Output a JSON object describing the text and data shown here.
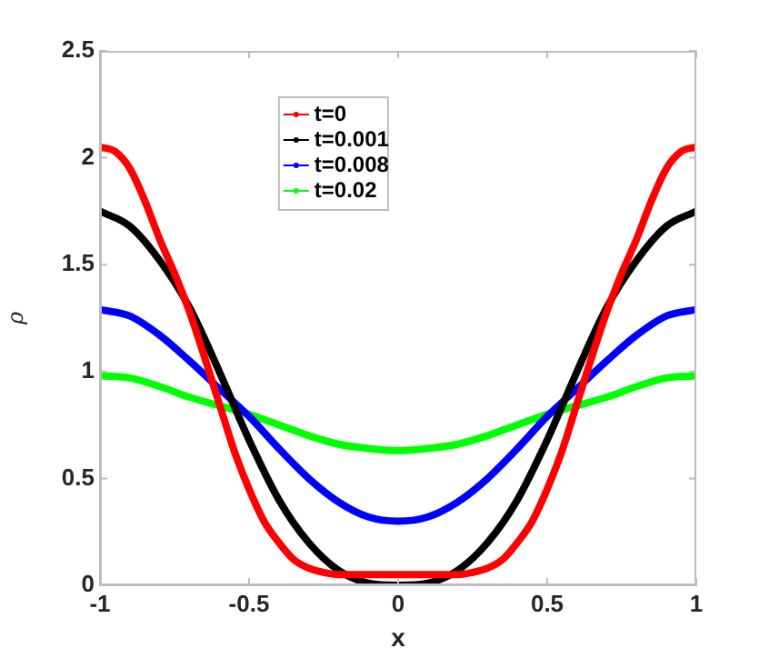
{
  "chart_data": {
    "type": "line",
    "xlabel": "x",
    "ylabel": "ρ",
    "xlim": [
      -1,
      1
    ],
    "ylim": [
      0,
      2.5
    ],
    "xticks": [
      -1,
      -0.5,
      0,
      0.5,
      1
    ],
    "yticks": [
      0,
      0.5,
      1,
      1.5,
      2,
      2.5
    ],
    "grid": false,
    "legend": "top",
    "marker": "none",
    "line_style": "solid",
    "series": [
      {
        "name": "t=0",
        "color": "#ff0000",
        "x": [
          -1,
          -0.95,
          -0.9,
          -0.85,
          -0.8,
          -0.75,
          -0.7,
          -0.65,
          -0.6,
          -0.55,
          -0.5,
          -0.45,
          -0.4,
          -0.35,
          -0.3,
          -0.25,
          -0.2,
          0,
          0.2,
          0.25,
          0.3,
          0.35,
          0.4,
          0.45,
          0.5,
          0.55,
          0.6,
          0.65,
          0.7,
          0.75,
          0.8,
          0.85,
          0.9,
          0.95,
          1
        ],
        "values": [
          2.05,
          2.03,
          1.95,
          1.8,
          1.62,
          1.46,
          1.28,
          1.07,
          0.85,
          0.63,
          0.45,
          0.3,
          0.2,
          0.12,
          0.08,
          0.06,
          0.05,
          0.05,
          0.05,
          0.06,
          0.08,
          0.12,
          0.2,
          0.3,
          0.45,
          0.63,
          0.85,
          1.07,
          1.28,
          1.46,
          1.62,
          1.8,
          1.95,
          2.03,
          2.05
        ]
      },
      {
        "name": "t=0.001",
        "color": "#000000",
        "x": [
          -1,
          -0.9,
          -0.8,
          -0.7,
          -0.6,
          -0.5,
          -0.4,
          -0.3,
          -0.2,
          -0.1,
          0,
          0.1,
          0.2,
          0.3,
          0.4,
          0.5,
          0.6,
          0.7,
          0.8,
          0.9,
          1
        ],
        "values": [
          1.75,
          1.68,
          1.52,
          1.3,
          1.0,
          0.68,
          0.4,
          0.2,
          0.07,
          0.01,
          0,
          0.01,
          0.07,
          0.2,
          0.4,
          0.68,
          1.0,
          1.3,
          1.52,
          1.68,
          1.75
        ]
      },
      {
        "name": "t=0.008",
        "color": "#0000ff",
        "x": [
          -1,
          -0.9,
          -0.8,
          -0.7,
          -0.6,
          -0.5,
          -0.4,
          -0.3,
          -0.2,
          -0.1,
          0,
          0.1,
          0.2,
          0.3,
          0.4,
          0.5,
          0.6,
          0.7,
          0.8,
          0.9,
          1
        ],
        "values": [
          1.29,
          1.26,
          1.17,
          1.05,
          0.92,
          0.79,
          0.64,
          0.5,
          0.39,
          0.32,
          0.3,
          0.32,
          0.39,
          0.5,
          0.64,
          0.79,
          0.92,
          1.05,
          1.17,
          1.26,
          1.29
        ]
      },
      {
        "name": "t=0.02",
        "color": "#00ff00",
        "x": [
          -1,
          -0.9,
          -0.8,
          -0.7,
          -0.6,
          -0.5,
          -0.4,
          -0.3,
          -0.2,
          -0.1,
          0,
          0.1,
          0.2,
          0.3,
          0.4,
          0.5,
          0.6,
          0.7,
          0.8,
          0.9,
          1
        ],
        "values": [
          0.98,
          0.97,
          0.93,
          0.88,
          0.84,
          0.8,
          0.75,
          0.7,
          0.66,
          0.64,
          0.63,
          0.64,
          0.66,
          0.7,
          0.75,
          0.8,
          0.84,
          0.88,
          0.93,
          0.97,
          0.98
        ]
      }
    ]
  }
}
